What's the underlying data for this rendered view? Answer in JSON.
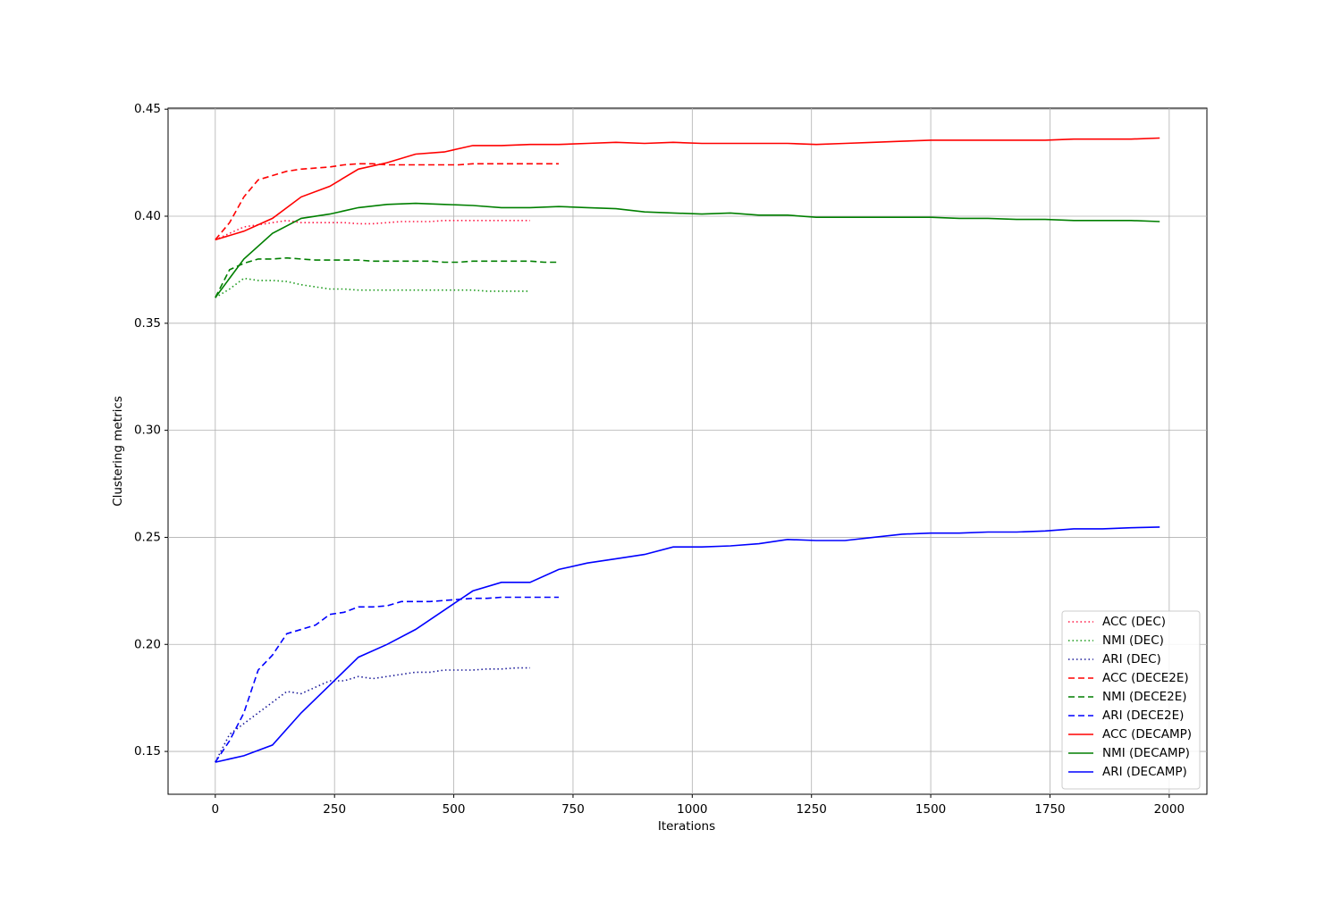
{
  "chart_data": {
    "type": "line",
    "x_label": "Iterations",
    "y_label": "Clustering metrics",
    "xlim": [
      -99,
      2079
    ],
    "ylim": [
      0.13,
      0.4505
    ],
    "xticks": [
      0,
      250,
      500,
      750,
      1000,
      1250,
      1500,
      1750,
      2000
    ],
    "yticks": [
      0.15,
      {
        "value": 0.2,
        "label": "0.20"
      },
      0.25,
      {
        "value": 0.3,
        "label": "0.30"
      },
      0.35,
      {
        "value": 0.4,
        "label": "0.40"
      },
      0.45
    ],
    "grid": true,
    "legend": "lower right",
    "series": [
      {
        "name": "ACC (DEC)",
        "color": "#ff1744",
        "linestyle": "dotted",
        "x": [
          0,
          30,
          60,
          90,
          120,
          150,
          180,
          210,
          240,
          270,
          300,
          330,
          360,
          390,
          420,
          450,
          480,
          510,
          540,
          570,
          600,
          630,
          660
        ],
        "values": [
          0.389,
          0.392,
          0.395,
          0.396,
          0.397,
          0.398,
          0.397,
          0.397,
          0.397,
          0.397,
          0.3965,
          0.3965,
          0.397,
          0.3975,
          0.3975,
          0.3975,
          0.398,
          0.398,
          0.398,
          0.398,
          0.398,
          0.398,
          0.398
        ]
      },
      {
        "name": "NMI (DEC)",
        "color": "#1a9a1a",
        "linestyle": "dotted",
        "x": [
          0,
          30,
          60,
          90,
          120,
          150,
          180,
          210,
          240,
          270,
          300,
          330,
          360,
          390,
          420,
          450,
          480,
          510,
          540,
          570,
          600,
          630,
          660
        ],
        "values": [
          0.362,
          0.366,
          0.371,
          0.37,
          0.37,
          0.3695,
          0.368,
          0.367,
          0.366,
          0.366,
          0.3655,
          0.3655,
          0.3655,
          0.3655,
          0.3655,
          0.3655,
          0.3655,
          0.3655,
          0.3655,
          0.365,
          0.365,
          0.365,
          0.365
        ]
      },
      {
        "name": "ARI (DEC)",
        "color": "#1a1a99",
        "linestyle": "dotted",
        "x": [
          0,
          30,
          60,
          90,
          120,
          150,
          180,
          210,
          240,
          270,
          300,
          330,
          360,
          390,
          420,
          450,
          480,
          510,
          540,
          570,
          600,
          630,
          660
        ],
        "values": [
          0.145,
          0.158,
          0.163,
          0.168,
          0.173,
          0.178,
          0.177,
          0.18,
          0.183,
          0.183,
          0.185,
          0.184,
          0.185,
          0.186,
          0.187,
          0.187,
          0.188,
          0.188,
          0.188,
          0.1885,
          0.1885,
          0.189,
          0.189
        ]
      },
      {
        "name": "ACC (DECE2E)",
        "color": "#ff0000",
        "linestyle": "dashed",
        "x": [
          0,
          30,
          60,
          90,
          120,
          150,
          180,
          210,
          240,
          270,
          300,
          330,
          360,
          390,
          420,
          450,
          480,
          510,
          540,
          570,
          600,
          630,
          660,
          690,
          720
        ],
        "values": [
          0.389,
          0.397,
          0.409,
          0.417,
          0.419,
          0.421,
          0.422,
          0.4225,
          0.423,
          0.424,
          0.4245,
          0.4245,
          0.424,
          0.424,
          0.424,
          0.424,
          0.424,
          0.424,
          0.4245,
          0.4245,
          0.4245,
          0.4245,
          0.4245,
          0.4245,
          0.4245
        ]
      },
      {
        "name": "NMI (DECE2E)",
        "color": "#007f00",
        "linestyle": "dashed",
        "x": [
          0,
          30,
          60,
          90,
          120,
          150,
          180,
          210,
          240,
          270,
          300,
          330,
          360,
          390,
          420,
          450,
          480,
          510,
          540,
          570,
          600,
          630,
          660,
          690,
          720
        ],
        "values": [
          0.362,
          0.375,
          0.378,
          0.38,
          0.38,
          0.3805,
          0.38,
          0.3795,
          0.3795,
          0.3795,
          0.3795,
          0.379,
          0.379,
          0.379,
          0.379,
          0.379,
          0.3785,
          0.3785,
          0.379,
          0.379,
          0.379,
          0.379,
          0.379,
          0.3785,
          0.3785
        ]
      },
      {
        "name": "ARI (DECE2E)",
        "color": "#0000ff",
        "linestyle": "dashed",
        "x": [
          0,
          30,
          60,
          90,
          120,
          150,
          180,
          210,
          240,
          270,
          300,
          330,
          360,
          390,
          420,
          450,
          480,
          510,
          540,
          570,
          600,
          630,
          660,
          690,
          720
        ],
        "values": [
          0.145,
          0.155,
          0.168,
          0.188,
          0.195,
          0.205,
          0.207,
          0.209,
          0.214,
          0.215,
          0.2175,
          0.2175,
          0.218,
          0.22,
          0.22,
          0.22,
          0.2205,
          0.221,
          0.2215,
          0.2215,
          0.222,
          0.222,
          0.222,
          0.222,
          0.222
        ]
      },
      {
        "name": "ACC (DECAMP)",
        "color": "#ff0000",
        "linestyle": "solid",
        "x": [
          0,
          60,
          120,
          180,
          240,
          300,
          360,
          420,
          480,
          540,
          600,
          660,
          720,
          780,
          840,
          900,
          960,
          1020,
          1080,
          1140,
          1200,
          1260,
          1320,
          1380,
          1440,
          1500,
          1560,
          1620,
          1680,
          1740,
          1800,
          1860,
          1920,
          1980
        ],
        "values": [
          0.389,
          0.393,
          0.399,
          0.409,
          0.414,
          0.422,
          0.425,
          0.429,
          0.43,
          0.433,
          0.433,
          0.4335,
          0.4335,
          0.434,
          0.4345,
          0.434,
          0.4345,
          0.434,
          0.434,
          0.434,
          0.434,
          0.4335,
          0.434,
          0.4345,
          0.435,
          0.4355,
          0.4355,
          0.4355,
          0.4355,
          0.4355,
          0.436,
          0.436,
          0.436,
          0.4365
        ]
      },
      {
        "name": "NMI (DECAMP)",
        "color": "#007f00",
        "linestyle": "solid",
        "x": [
          0,
          60,
          120,
          180,
          240,
          300,
          360,
          420,
          480,
          540,
          600,
          660,
          720,
          780,
          840,
          900,
          960,
          1020,
          1080,
          1140,
          1200,
          1260,
          1320,
          1380,
          1440,
          1500,
          1560,
          1620,
          1680,
          1740,
          1800,
          1860,
          1920,
          1980
        ],
        "values": [
          0.362,
          0.38,
          0.392,
          0.399,
          0.401,
          0.404,
          0.4055,
          0.406,
          0.4055,
          0.405,
          0.404,
          0.404,
          0.4045,
          0.404,
          0.4035,
          0.402,
          0.4015,
          0.401,
          0.4015,
          0.4005,
          0.4005,
          0.3995,
          0.3995,
          0.3995,
          0.3995,
          0.3995,
          0.399,
          0.399,
          0.3985,
          0.3985,
          0.398,
          0.398,
          0.398,
          0.3975
        ]
      },
      {
        "name": "ARI (DECAMP)",
        "color": "#0000ff",
        "linestyle": "solid",
        "x": [
          0,
          60,
          120,
          180,
          240,
          300,
          360,
          420,
          480,
          540,
          600,
          660,
          720,
          780,
          840,
          900,
          960,
          1020,
          1080,
          1140,
          1200,
          1260,
          1320,
          1380,
          1440,
          1500,
          1560,
          1620,
          1680,
          1740,
          1800,
          1860,
          1920,
          1980
        ],
        "values": [
          0.145,
          0.148,
          0.153,
          0.168,
          0.181,
          0.194,
          0.2,
          0.207,
          0.216,
          0.225,
          0.229,
          0.229,
          0.235,
          0.238,
          0.24,
          0.242,
          0.2455,
          0.2455,
          0.246,
          0.247,
          0.249,
          0.2485,
          0.2485,
          0.25,
          0.2515,
          0.252,
          0.252,
          0.2525,
          0.2525,
          0.253,
          0.254,
          0.254,
          0.2545,
          0.2548
        ]
      }
    ]
  }
}
